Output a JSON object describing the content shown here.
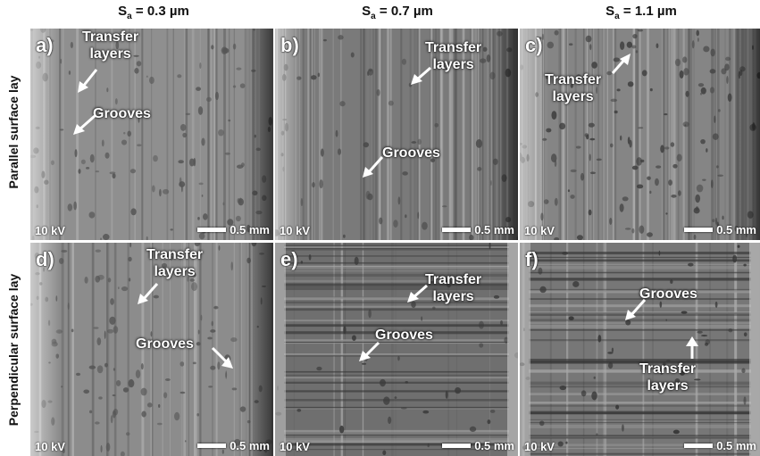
{
  "columns": [
    {
      "prefix": "S",
      "sub": "a",
      "suffix": " = 0.3 µm"
    },
    {
      "prefix": "S",
      "sub": "a",
      "suffix": " = 0.7 µm"
    },
    {
      "prefix": "S",
      "sub": "a",
      "suffix": " = 1.1 µm"
    }
  ],
  "rows": [
    "Parallel surface lay",
    "Perpendicular surface lay"
  ],
  "voltage": "10 kV",
  "scale": "0.5 mm",
  "panels": [
    {
      "label": "a)",
      "ann": [
        {
          "t1": "Transfer",
          "t2": "layers"
        },
        {
          "t1": "Grooves",
          "t2": ""
        }
      ]
    },
    {
      "label": "b)",
      "ann": [
        {
          "t1": "Transfer",
          "t2": "layers"
        },
        {
          "t1": "Grooves",
          "t2": ""
        }
      ]
    },
    {
      "label": "c)",
      "ann": [
        {
          "t1": "Transfer",
          "t2": "layers"
        }
      ]
    },
    {
      "label": "d)",
      "ann": [
        {
          "t1": "Transfer",
          "t2": "layers"
        },
        {
          "t1": "Grooves",
          "t2": ""
        }
      ]
    },
    {
      "label": "e)",
      "ann": [
        {
          "t1": "Transfer",
          "t2": "layers"
        },
        {
          "t1": "Grooves",
          "t2": ""
        }
      ]
    },
    {
      "label": "f)",
      "ann": [
        {
          "t1": "Grooves",
          "t2": ""
        },
        {
          "t1": "Transfer",
          "t2": "layers"
        }
      ]
    }
  ]
}
